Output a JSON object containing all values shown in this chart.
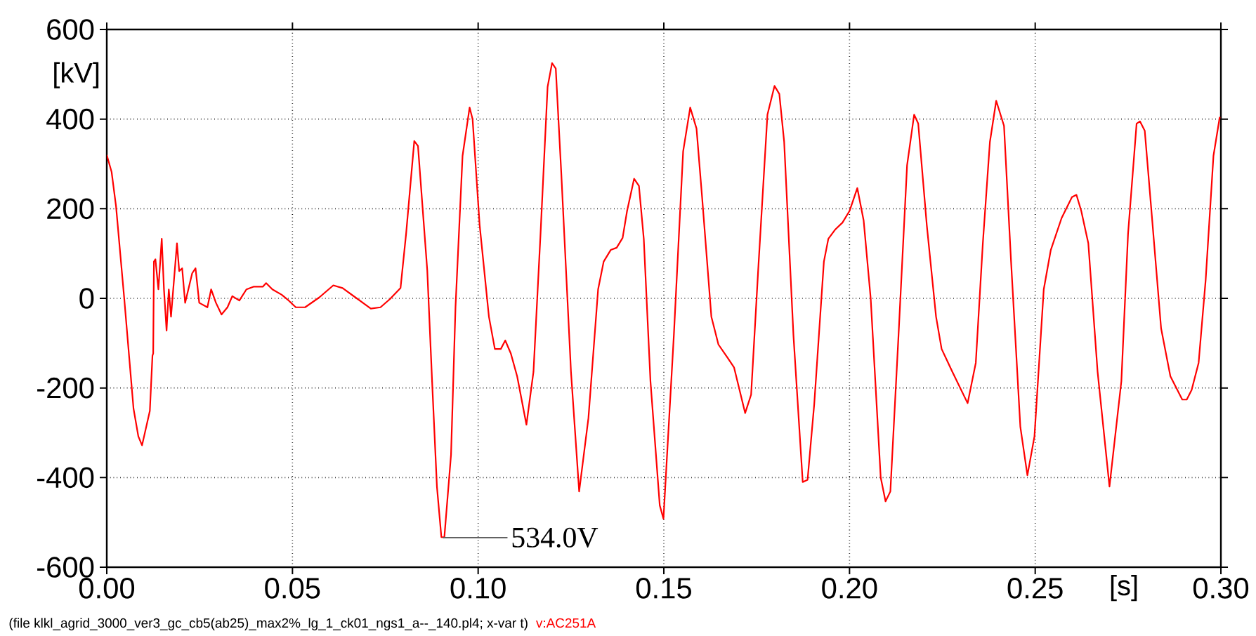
{
  "chart_data": {
    "type": "line",
    "xlabel": "[s]",
    "ylabel": "[kV]",
    "xlim": [
      0,
      0.3
    ],
    "ylim": [
      -600,
      600
    ],
    "xticks": [
      {
        "value": 0,
        "label": "0.00"
      },
      {
        "value": 0.05,
        "label": "0.05"
      },
      {
        "value": 0.1,
        "label": "0.10"
      },
      {
        "value": 0.15,
        "label": "0.15"
      },
      {
        "value": 0.2,
        "label": "0.20"
      },
      {
        "value": 0.25,
        "label": "0.25"
      },
      {
        "value": 0.3,
        "label": "0.30"
      }
    ],
    "yticks": [
      -600,
      -400,
      -200,
      0,
      200,
      400,
      600
    ],
    "grid": true,
    "annotations": [
      {
        "text": "534.0V",
        "x": 0.0905,
        "y": -534
      },
      "(file klkl_agrid_3000_ver3_gc_cb5(ab25)_max2%_lg_1_ck01_ngs1_a--_140.pl4; x-var t)",
      "v:AC251A"
    ],
    "series": [
      {
        "color": "#ff0000",
        "x": [
          0,
          0.0013,
          0.0025,
          0.0047,
          0.0072,
          0.0085,
          0.0095,
          0.0116,
          0.0123,
          0.0125,
          0.0127,
          0.0131,
          0.0139,
          0.0148,
          0.0154,
          0.0161,
          0.0167,
          0.0173,
          0.0189,
          0.0195,
          0.0203,
          0.0211,
          0.023,
          0.0239,
          0.0249,
          0.0271,
          0.0281,
          0.0294,
          0.0309,
          0.0325,
          0.0338,
          0.0357,
          0.0376,
          0.0395,
          0.042,
          0.0429,
          0.0446,
          0.0471,
          0.049,
          0.0509,
          0.0534,
          0.0572,
          0.061,
          0.0635,
          0.0673,
          0.0711,
          0.0737,
          0.0762,
          0.0791,
          0.0806,
          0.0828,
          0.0838,
          0.0863,
          0.0876,
          0.0889,
          0.0901,
          0.0909,
          0.0927,
          0.0939,
          0.0958,
          0.0977,
          0.0985,
          0.1004,
          0.1029,
          0.1045,
          0.1061,
          0.1073,
          0.1088,
          0.1105,
          0.113,
          0.1149,
          0.1168,
          0.1187,
          0.1199,
          0.1209,
          0.1224,
          0.125,
          0.1272,
          0.1297,
          0.1323,
          0.1338,
          0.1357,
          0.1373,
          0.1389,
          0.1401,
          0.142,
          0.1433,
          0.1446,
          0.1464,
          0.1489,
          0.1499,
          0.1527,
          0.1552,
          0.1571,
          0.1588,
          0.1603,
          0.1628,
          0.1647,
          0.1672,
          0.1689,
          0.1704,
          0.1719,
          0.1735,
          0.1754,
          0.1779,
          0.1798,
          0.1811,
          0.1824,
          0.1849,
          0.1874,
          0.1887,
          0.1905,
          0.1931,
          0.1943,
          0.1962,
          0.1981,
          0.2,
          0.2021,
          0.2038,
          0.2057,
          0.2084,
          0.2097,
          0.211,
          0.2132,
          0.2155,
          0.2174,
          0.2185,
          0.2208,
          0.2233,
          0.2248,
          0.2277,
          0.2318,
          0.234,
          0.2359,
          0.2378,
          0.2395,
          0.2416,
          0.2435,
          0.246,
          0.2479,
          0.2498,
          0.2523,
          0.2542,
          0.2571,
          0.2599,
          0.2611,
          0.2624,
          0.2643,
          0.2668,
          0.27,
          0.2732,
          0.275,
          0.2773,
          0.2782,
          0.2795,
          0.2814,
          0.2839,
          0.2864,
          0.2896,
          0.2908,
          0.2921,
          0.294,
          0.2959,
          0.298,
          0.2997
        ],
        "values": [
          320,
          282,
          205,
          0,
          -246,
          -308,
          -328,
          -251,
          -128,
          -123,
          82,
          87,
          20,
          133,
          20,
          -72,
          20,
          -41,
          123,
          61,
          67,
          -10,
          56,
          67,
          -10,
          -20,
          20,
          -10,
          -36,
          -20,
          5,
          -5,
          20,
          26,
          26,
          34,
          20,
          8,
          -5,
          -20,
          -20,
          2,
          29,
          23,
          0,
          -23,
          -20,
          -2,
          23,
          144,
          351,
          340,
          62,
          -185,
          -420,
          -533,
          -533,
          -349,
          -20,
          318,
          426,
          400,
          164,
          -41,
          -113,
          -113,
          -94,
          -123,
          -174,
          -282,
          -164,
          144,
          472,
          525,
          513,
          277,
          -164,
          -431,
          -267,
          20,
          82,
          108,
          113,
          135,
          195,
          267,
          251,
          133,
          -185,
          -462,
          -492,
          -82,
          328,
          426,
          379,
          226,
          -41,
          -103,
          -133,
          -154,
          -205,
          -256,
          -215,
          62,
          410,
          474,
          456,
          349,
          -82,
          -410,
          -405,
          -236,
          82,
          133,
          154,
          169,
          195,
          246,
          174,
          0,
          -400,
          -453,
          -431,
          -82,
          297,
          410,
          390,
          164,
          -41,
          -113,
          -164,
          -234,
          -144,
          123,
          349,
          441,
          385,
          82,
          -287,
          -395,
          -308,
          20,
          108,
          179,
          226,
          231,
          195,
          123,
          -164,
          -420,
          -185,
          144,
          390,
          395,
          374,
          185,
          -67,
          -174,
          -226,
          -226,
          -205,
          -144,
          41,
          318,
          405
        ]
      }
    ]
  }
}
